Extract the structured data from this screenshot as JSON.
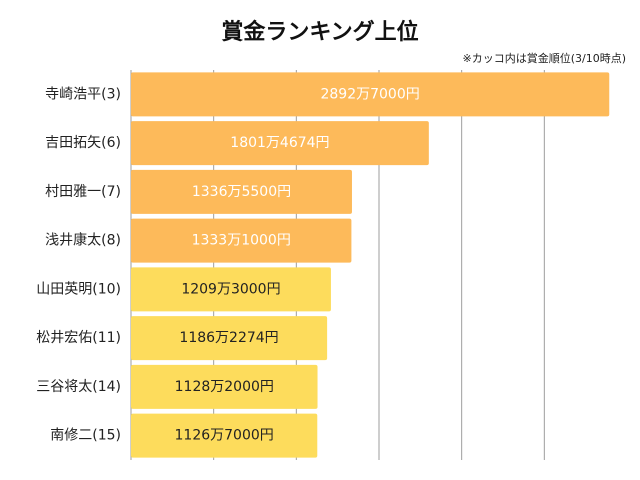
{
  "chart_data": {
    "type": "bar",
    "orientation": "horizontal",
    "title": "賞金ランキング上位",
    "note": "※カッコ内は賞金順位(3/10時点)",
    "categories": [
      "寺崎浩平(3)",
      "吉田拓矢(6)",
      "村田雅一(7)",
      "浅井康太(8)",
      "山田英明(10)",
      "松井宏佑(11)",
      "三谷将太(14)",
      "南修二(15)"
    ],
    "values": [
      28927000,
      18014674,
      13365500,
      13331000,
      12093000,
      11862274,
      11282000,
      11267000
    ],
    "value_labels": [
      "2892万7000円",
      "1801万4674円",
      "1336万5500円",
      "1333万1000円",
      "1209万3000円",
      "1186万2274円",
      "1128万2000円",
      "1126万7000円"
    ],
    "bar_colors": [
      "#FDBA5A",
      "#FDBA5A",
      "#FDBA5A",
      "#FDBA5A",
      "#FDDC5C",
      "#FDDC5C",
      "#FDDC5C",
      "#FDDC5C"
    ],
    "label_colors": [
      "#ffffff",
      "#ffffff",
      "#ffffff",
      "#ffffff",
      "#222222",
      "#222222",
      "#222222",
      "#222222"
    ],
    "xlim": [
      0,
      30000000
    ],
    "grid": true,
    "gridline_color": "#9e9e9e"
  }
}
